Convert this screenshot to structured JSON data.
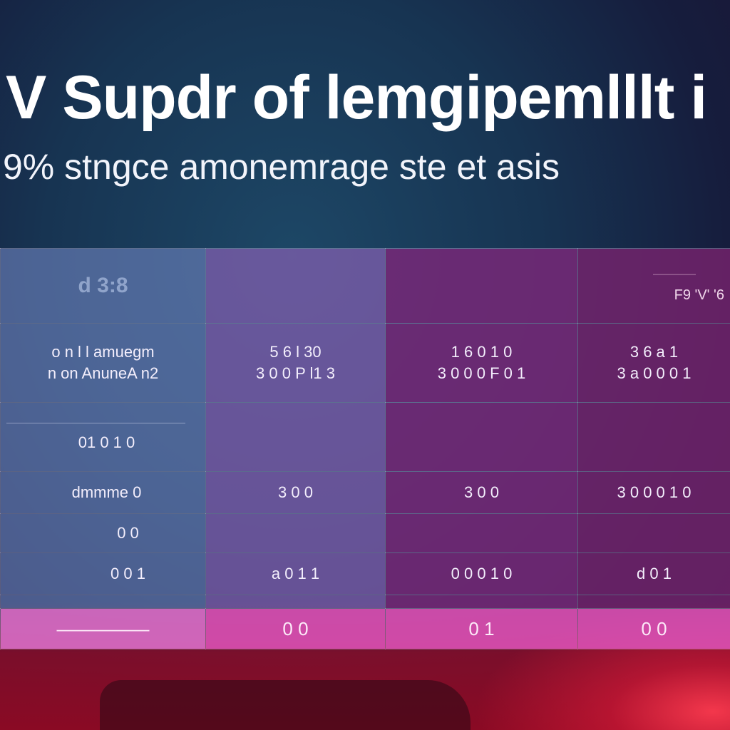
{
  "header": {
    "title": "V Supdr of lemgipemlllt i",
    "subtitle": "9% stngce amonemrage ste  et asis"
  },
  "table": {
    "head": {
      "col0": "d  3:8",
      "col3_small": "—————",
      "col3": "F9 'V' '6"
    },
    "rows": [
      {
        "label_lines": [
          "o n l l  amuegm",
          "n on AnuneA n2"
        ],
        "cells": [
          [
            "5 6 l 30",
            "3 0 0 P l1 3"
          ],
          [
            "1 6 0 1 0",
            "3 0 0 0 F 0 1"
          ],
          [
            "3 6 a 1",
            "3 a 0 0 0 1"
          ]
        ]
      },
      {
        "label": "01 0 1 0",
        "cells": [
          "",
          "",
          ""
        ]
      },
      {
        "label": "dmmme  0",
        "cells": [
          "3 0 0",
          "3 0 0",
          "3 0 0 0 1 0"
        ]
      },
      {
        "label": "0 0",
        "cells": [
          "",
          "",
          ""
        ]
      },
      {
        "label": "0 0 1",
        "cells": [
          "a 0 1 1",
          "0 0 0 1 0",
          "d 0 1"
        ]
      }
    ],
    "total": {
      "label": "—————",
      "cells": [
        "0 0",
        "0 1",
        "0 0"
      ]
    }
  },
  "colors": {
    "background": "#173452",
    "accent_bottom": "#8a0a24",
    "total_row": "#dc50b4"
  }
}
